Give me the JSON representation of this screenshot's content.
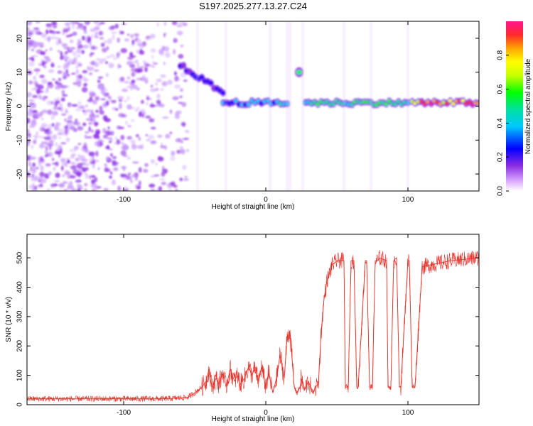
{
  "title": "S197.2025.277.13.27.C24",
  "colors": {
    "snr_line": "#e8332c",
    "spec_low": "#8a2be2",
    "spec_ridge": "#ff3a2a"
  },
  "chart_data": [
    {
      "type": "heatmap",
      "name": "spectrogram",
      "xlabel": "Height of straight line (km)",
      "ylabel": "Frequency (Hz)",
      "xlim": [
        -168,
        150
      ],
      "ylim": [
        -25,
        25
      ],
      "xticks": [
        -100,
        0,
        100
      ],
      "yticks": [
        -20,
        -10,
        0,
        10,
        20
      ],
      "colorbar": {
        "label": "Normalized spectral amplitude",
        "range": [
          0,
          1
        ],
        "ticks": [
          "0.0",
          "0.2",
          "0.4",
          "0.6",
          "0.8"
        ]
      },
      "features": [
        {
          "region": "noise",
          "x_range": [
            -168,
            -55
          ],
          "freq": "broadband",
          "amplitude": 0.15
        },
        {
          "region": "ridge",
          "x_range": [
            -60,
            -30
          ],
          "freq_start": 12,
          "freq_end": 4,
          "amplitude": 0.3
        },
        {
          "region": "ridge",
          "x_range": [
            -30,
            15
          ],
          "freq": 1,
          "amplitude": 0.45
        },
        {
          "region": "burst",
          "x_range": [
            20,
            27
          ],
          "freq": 10,
          "amplitude": 0.35
        },
        {
          "region": "ridge",
          "x_range": [
            28,
            100
          ],
          "freq": 1,
          "amplitude": 0.6
        },
        {
          "region": "ridge",
          "x_range": [
            103,
            150
          ],
          "freq": 1,
          "amplitude": 0.95
        }
      ]
    },
    {
      "type": "line",
      "name": "snr",
      "xlabel": "Height of straight line (km)",
      "ylabel": "SNR (10 * v/v)",
      "xlim": [
        -168,
        150
      ],
      "ylim": [
        0,
        580
      ],
      "xticks": [
        -100,
        0,
        100
      ],
      "yticks": [
        0,
        100,
        200,
        300,
        400,
        500
      ],
      "series": [
        {
          "name": "SNR",
          "x": [
            -168,
            -150,
            -130,
            -110,
            -90,
            -70,
            -55,
            -50,
            -45,
            -42,
            -40,
            -38,
            -35,
            -33,
            -30,
            -28,
            -25,
            -22,
            -20,
            -18,
            -15,
            -12,
            -10,
            -8,
            -5,
            -3,
            0,
            2,
            5,
            8,
            10,
            13,
            15,
            17,
            20,
            22,
            24,
            25,
            27,
            30,
            33,
            35,
            37,
            39,
            41,
            43,
            45,
            47,
            48,
            50,
            55,
            56,
            58,
            60,
            62,
            64,
            65,
            70,
            71,
            73,
            75,
            77,
            79,
            80,
            85,
            86,
            88,
            90,
            92,
            94,
            95,
            100,
            101,
            103,
            105,
            110,
            120,
            130,
            140,
            150
          ],
          "values": [
            20,
            20,
            20,
            20,
            20,
            20,
            25,
            40,
            60,
            80,
            120,
            60,
            90,
            70,
            110,
            60,
            120,
            80,
            100,
            70,
            90,
            130,
            100,
            120,
            80,
            130,
            60,
            110,
            40,
            100,
            170,
            90,
            230,
            250,
            60,
            40,
            60,
            90,
            50,
            80,
            40,
            60,
            70,
            250,
            360,
            420,
            450,
            480,
            480,
            490,
            490,
            60,
            60,
            490,
            490,
            60,
            60,
            490,
            490,
            60,
            60,
            490,
            490,
            500,
            490,
            60,
            60,
            490,
            500,
            60,
            60,
            490,
            490,
            60,
            60,
            470,
            480,
            490,
            495,
            500
          ]
        }
      ]
    }
  ]
}
